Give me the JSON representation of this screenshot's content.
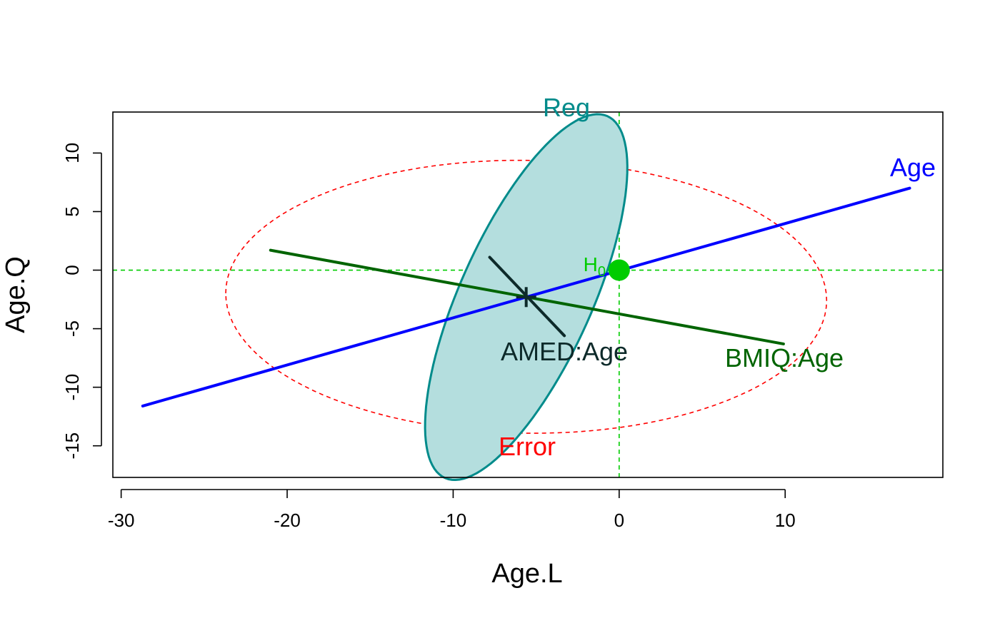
{
  "chart_data": {
    "type": "scatter",
    "title": "",
    "xlabel": "Age.L",
    "ylabel": "Age.Q",
    "xlim": [
      -30.5,
      19.5
    ],
    "ylim": [
      -17.7,
      13.5
    ],
    "x_ticks": [
      -30,
      -20,
      -10,
      0,
      10
    ],
    "y_ticks": [
      -15,
      -10,
      -5,
      0,
      5,
      10
    ],
    "x_tick_labels": [
      "-30",
      "-20",
      "-10",
      "0",
      "10"
    ],
    "y_tick_labels": [
      "-15",
      "-10",
      "-5",
      "0",
      "5",
      "10"
    ],
    "reference_lines": {
      "h": 0,
      "v": 0,
      "color": "#00cc00",
      "style": "dashed"
    },
    "ellipses": [
      {
        "name": "Error",
        "center": [
          -5.6,
          -2.5
        ],
        "points": [
          [
            -23.7,
            -2.0
          ],
          [
            -5.6,
            9.4
          ],
          [
            12.5,
            -2.6
          ],
          [
            -5.6,
            -13.9
          ]
        ],
        "stroke": "#ff0000",
        "fill": "none",
        "style": "dashed"
      },
      {
        "name": "Reg",
        "center": [
          -5.6,
          -2.3
        ],
        "points": [
          [
            -3.2,
            12.2
          ],
          [
            0.0,
            3.5
          ],
          [
            -8.0,
            -16.8
          ],
          [
            -11.2,
            -8.1
          ]
        ],
        "stroke": "#008b8b",
        "fill": "#b4dede",
        "style": "solid"
      }
    ],
    "segments": [
      {
        "name": "Age",
        "from": [
          -28.7,
          -11.6
        ],
        "to": [
          17.5,
          7.0
        ],
        "color": "#0000ff"
      },
      {
        "name": "BMIQ:Age",
        "from": [
          -21.0,
          1.7
        ],
        "to": [
          9.9,
          -6.3
        ],
        "color": "#006400"
      },
      {
        "name": "AMED:Age",
        "from": [
          -7.8,
          1.1
        ],
        "to": [
          -3.3,
          -5.6
        ],
        "color": "#0d2a2a"
      }
    ],
    "center_mark": [
      -5.6,
      -2.3
    ],
    "h0_point": {
      "label": "H",
      "subscript": "0",
      "x": 0,
      "y": 0,
      "color": "#00cc00"
    },
    "labels": [
      {
        "text": "Reg",
        "color": "#008b8b"
      },
      {
        "text": "Age",
        "color": "#0000ff"
      },
      {
        "text": "AMED:Age",
        "color": "#0d2a2a"
      },
      {
        "text": "BMIQ:Age",
        "color": "#006400"
      },
      {
        "text": "Error",
        "color": "#ff0000"
      }
    ]
  }
}
